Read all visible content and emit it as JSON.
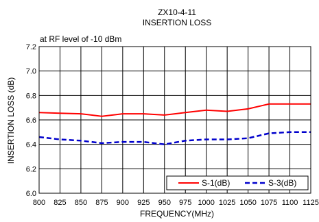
{
  "chart_data": {
    "type": "line",
    "title": "ZX10-4-11",
    "subtitle": "INSERTION LOSS",
    "annotation": "at RF level of -10 dBm",
    "xlabel": "FREQUENCY(MHz)",
    "ylabel": "INSERTION LOSS (dB)",
    "xlim": [
      800,
      1125
    ],
    "ylim": [
      6.0,
      7.2
    ],
    "x_ticks": [
      800,
      825,
      850,
      875,
      900,
      925,
      950,
      975,
      1000,
      1025,
      1050,
      1075,
      1100,
      1125
    ],
    "y_ticks": [
      6.0,
      6.2,
      6.4,
      6.6,
      6.8,
      7.0,
      7.2
    ],
    "y_tick_labels": [
      "6.0",
      "6.2",
      "6.4",
      "6.6",
      "6.8",
      "7.0",
      "7.2"
    ],
    "grid": true,
    "legend_placement": "bottom-right",
    "x": [
      800,
      825,
      850,
      875,
      900,
      925,
      950,
      975,
      1000,
      1025,
      1050,
      1075,
      1100,
      1125
    ],
    "series": [
      {
        "name": "S-1(dB)",
        "color": "#ff0000",
        "style": "solid",
        "values": [
          6.66,
          6.655,
          6.65,
          6.63,
          6.65,
          6.65,
          6.64,
          6.66,
          6.68,
          6.67,
          6.69,
          6.73,
          6.73,
          6.73
        ]
      },
      {
        "name": "S-3(dB)",
        "color": "#0000cc",
        "style": "dashed",
        "values": [
          6.46,
          6.44,
          6.43,
          6.41,
          6.42,
          6.42,
          6.4,
          6.43,
          6.44,
          6.44,
          6.45,
          6.49,
          6.5,
          6.5
        ]
      }
    ]
  }
}
